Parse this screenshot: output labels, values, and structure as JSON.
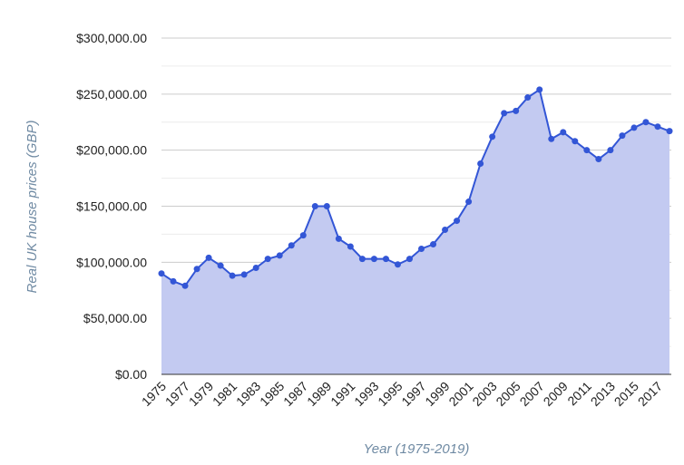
{
  "chart_data": {
    "type": "area",
    "x_label": "Year (1975-2019)",
    "y_label": "Real UK house prices (GBP)",
    "x": [
      1975,
      1976,
      1977,
      1978,
      1979,
      1980,
      1981,
      1982,
      1983,
      1984,
      1985,
      1986,
      1987,
      1988,
      1989,
      1990,
      1991,
      1992,
      1993,
      1994,
      1995,
      1996,
      1997,
      1998,
      1999,
      2000,
      2001,
      2002,
      2003,
      2004,
      2005,
      2006,
      2007,
      2008,
      2009,
      2010,
      2011,
      2012,
      2013,
      2014,
      2015,
      2016,
      2017,
      2018
    ],
    "series": [
      {
        "color": "#3356d6",
        "fill": "#c3caf1",
        "values": [
          90000,
          83000,
          79000,
          94000,
          104000,
          97000,
          88000,
          89000,
          95000,
          103000,
          106000,
          115000,
          124000,
          150000,
          150000,
          121000,
          114000,
          103000,
          103000,
          103000,
          98000,
          103000,
          112000,
          116000,
          129000,
          137000,
          154000,
          188000,
          212000,
          233000,
          235000,
          247000,
          254000,
          210000,
          216000,
          208000,
          200000,
          192000,
          200000,
          213000,
          220000,
          225000,
          221000,
          217000
        ]
      }
    ],
    "xlim": [
      1975,
      2018
    ],
    "xticks": [
      1975,
      1977,
      1979,
      1981,
      1983,
      1985,
      1987,
      1989,
      1991,
      1993,
      1995,
      1997,
      1999,
      2001,
      2003,
      2005,
      2007,
      2009,
      2011,
      2013,
      2015,
      2017
    ],
    "ylim": [
      0,
      300000
    ],
    "yticks": [
      {
        "value": 0,
        "label": "$0.00"
      },
      {
        "value": 50000,
        "label": "$50,000.00"
      },
      {
        "value": 100000,
        "label": "$100,000.00"
      },
      {
        "value": 150000,
        "label": "$150,000.00"
      },
      {
        "value": 200000,
        "label": "$200,000.00"
      },
      {
        "value": 250000,
        "label": "$250,000.00"
      },
      {
        "value": 300000,
        "label": "$300,000.00"
      }
    ],
    "minor_yticks": [
      25000,
      75000,
      125000,
      175000,
      225000,
      275000
    ],
    "grid": true
  }
}
